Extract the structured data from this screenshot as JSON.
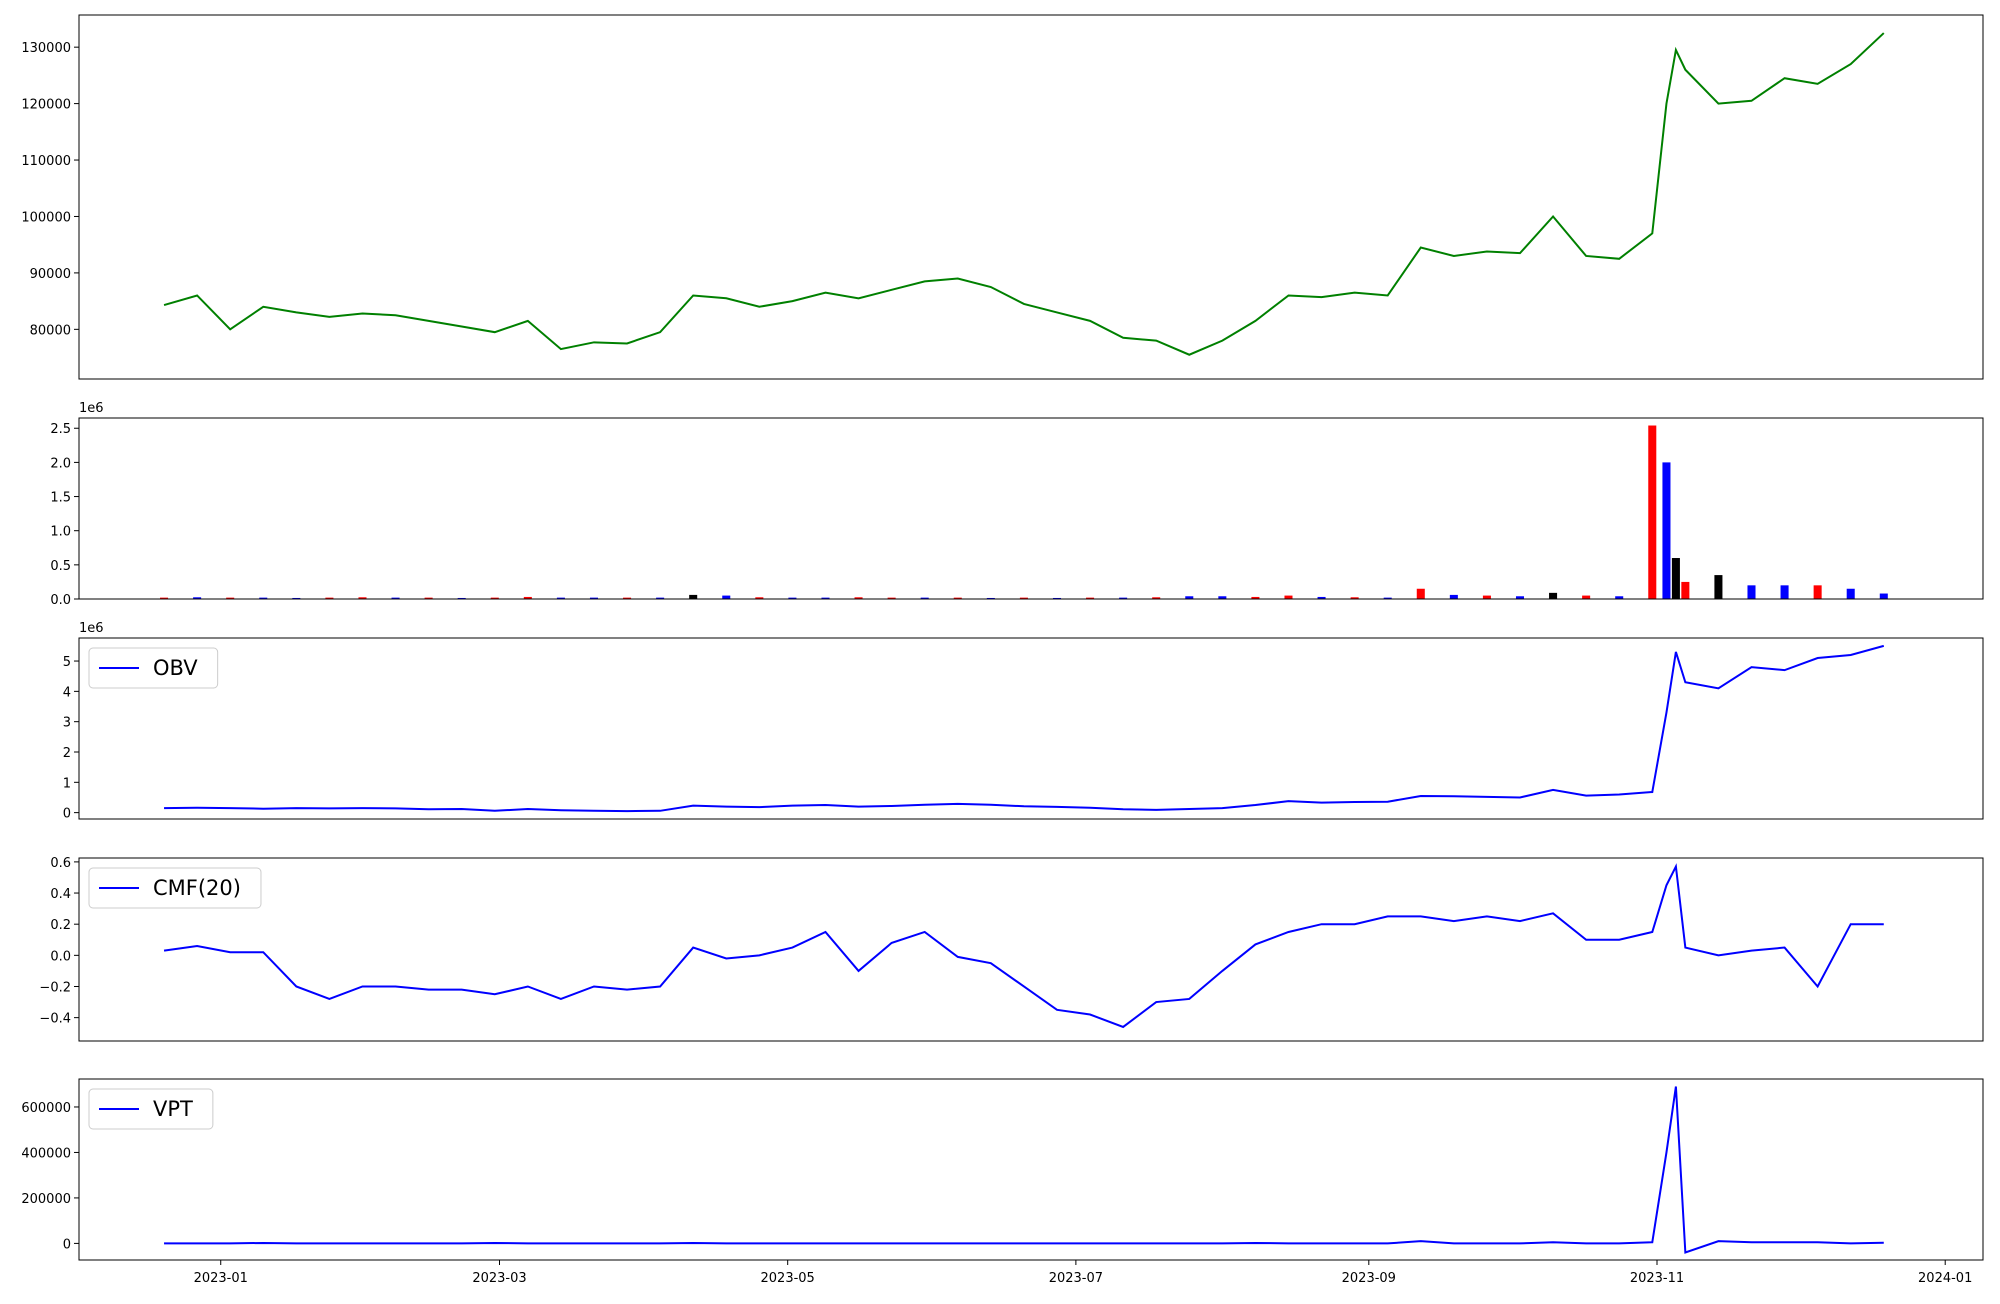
{
  "chart_data": [
    {
      "type": "line",
      "color": "#008000",
      "x": [
        -12,
        -5,
        2,
        9,
        16,
        23,
        30,
        37,
        44,
        51,
        58,
        65,
        72,
        79,
        86,
        93,
        100,
        107,
        114,
        121,
        128,
        135,
        142,
        149,
        156,
        163,
        170,
        177,
        184,
        191,
        198,
        205,
        212,
        219,
        226,
        233,
        240,
        247,
        254,
        261,
        268,
        275,
        282,
        289,
        296,
        303,
        306,
        308,
        310,
        317,
        324,
        331,
        338,
        345,
        352
      ],
      "values": [
        84300,
        86000,
        80000,
        84000,
        83000,
        82200,
        82800,
        82500,
        81500,
        80500,
        79500,
        81500,
        76500,
        77700,
        77500,
        79500,
        86000,
        85500,
        84000,
        85000,
        86500,
        85500,
        87000,
        88500,
        89000,
        87500,
        84500,
        83000,
        81500,
        78500,
        78000,
        75500,
        78000,
        81500,
        86000,
        85700,
        86500,
        86000,
        94500,
        93000,
        93800,
        93500,
        100000,
        93000,
        92500,
        97000,
        120000,
        129500,
        126000,
        120000,
        120500,
        124500,
        123500,
        127000,
        132500
      ],
      "xlim": [
        -30,
        373
      ],
      "ylim": [
        71200,
        135700
      ],
      "yticks": [
        80000,
        90000,
        100000,
        110000,
        120000,
        130000
      ]
    },
    {
      "type": "bar",
      "offset_label": "1e6",
      "x": [
        -12,
        -5,
        2,
        9,
        16,
        23,
        30,
        37,
        44,
        51,
        58,
        65,
        72,
        79,
        86,
        93,
        100,
        107,
        114,
        121,
        128,
        135,
        142,
        149,
        156,
        163,
        170,
        177,
        184,
        191,
        198,
        205,
        212,
        219,
        226,
        233,
        240,
        247,
        254,
        261,
        268,
        275,
        282,
        289,
        296,
        303,
        306,
        308,
        310,
        317,
        324,
        331,
        338,
        345,
        352
      ],
      "values": [
        20000,
        25000,
        20000,
        20000,
        15000,
        20000,
        25000,
        20000,
        20000,
        15000,
        20000,
        30000,
        20000,
        20000,
        20000,
        20000,
        60000,
        50000,
        25000,
        20000,
        20000,
        25000,
        20000,
        20000,
        20000,
        15000,
        20000,
        15000,
        20000,
        20000,
        25000,
        40000,
        40000,
        30000,
        50000,
        30000,
        25000,
        20000,
        150000,
        60000,
        50000,
        40000,
        90000,
        50000,
        40000,
        2540000,
        2000000,
        600000,
        250000,
        350000,
        200000,
        200000,
        200000,
        150000,
        80000
      ],
      "colors": [
        "red",
        "blue",
        "red",
        "blue",
        "blue",
        "red",
        "red",
        "blue",
        "red",
        "blue",
        "red",
        "red",
        "blue",
        "blue",
        "red",
        "blue",
        "black",
        "blue",
        "red",
        "blue",
        "blue",
        "red",
        "red",
        "blue",
        "red",
        "blue",
        "red",
        "blue",
        "red",
        "blue",
        "red",
        "blue",
        "blue",
        "red",
        "red",
        "blue",
        "red",
        "blue",
        "red",
        "blue",
        "red",
        "blue",
        "black",
        "red",
        "blue",
        "red",
        "blue",
        "black",
        "red",
        "black",
        "blue",
        "blue",
        "red",
        "blue",
        "blue"
      ],
      "xlim": [
        -30,
        373
      ],
      "ylim": [
        0,
        2650000
      ],
      "yticks": [
        {
          "value": 0,
          "label": "0.0"
        },
        {
          "value": 500000,
          "label": "0.5"
        },
        {
          "value": 1000000,
          "label": "1.0"
        },
        {
          "value": 1500000,
          "label": "1.5"
        },
        {
          "value": 2000000,
          "label": "2.0"
        },
        {
          "value": 2500000,
          "label": "2.5"
        }
      ]
    },
    {
      "type": "line",
      "offset_label": "1e6",
      "legend": "upper left",
      "x": [
        -12,
        -5,
        2,
        9,
        16,
        23,
        30,
        37,
        44,
        51,
        58,
        65,
        72,
        79,
        86,
        93,
        100,
        107,
        114,
        121,
        128,
        135,
        142,
        149,
        156,
        163,
        170,
        177,
        184,
        191,
        198,
        205,
        212,
        219,
        226,
        233,
        240,
        247,
        254,
        261,
        268,
        275,
        282,
        289,
        296,
        303,
        306,
        308,
        310,
        317,
        324,
        331,
        338,
        345,
        352
      ],
      "series": [
        {
          "name": "OBV",
          "color": "#0000ff",
          "values": [
            150000,
            160000,
            150000,
            130000,
            150000,
            140000,
            150000,
            140000,
            110000,
            120000,
            60000,
            120000,
            80000,
            60000,
            50000,
            60000,
            230000,
            200000,
            180000,
            230000,
            250000,
            200000,
            220000,
            260000,
            290000,
            260000,
            210000,
            190000,
            160000,
            110000,
            90000,
            120000,
            150000,
            250000,
            380000,
            330000,
            350000,
            360000,
            550000,
            540000,
            520000,
            500000,
            750000,
            560000,
            600000,
            680000,
            3300000,
            5300000,
            4300000,
            4100000,
            4800000,
            4700000,
            5100000,
            5200000,
            5500000
          ]
        }
      ],
      "xlim": [
        -30,
        373
      ],
      "ylim": [
        -210000,
        5760000
      ],
      "yticks": [
        {
          "value": 0,
          "label": "0"
        },
        {
          "value": 1000000,
          "label": "1"
        },
        {
          "value": 2000000,
          "label": "2"
        },
        {
          "value": 3000000,
          "label": "3"
        },
        {
          "value": 4000000,
          "label": "4"
        },
        {
          "value": 5000000,
          "label": "5"
        }
      ]
    },
    {
      "type": "line",
      "legend": "upper left",
      "x": [
        -12,
        -5,
        2,
        9,
        16,
        23,
        30,
        37,
        44,
        51,
        58,
        65,
        72,
        79,
        86,
        93,
        100,
        107,
        114,
        121,
        128,
        135,
        142,
        149,
        156,
        163,
        170,
        177,
        184,
        191,
        198,
        205,
        212,
        219,
        226,
        233,
        240,
        247,
        254,
        261,
        268,
        275,
        282,
        289,
        296,
        303,
        306,
        308,
        310,
        317,
        324,
        331,
        338,
        345,
        352
      ],
      "series": [
        {
          "name": "CMF(20)",
          "color": "#0000ff",
          "values": [
            0.03,
            0.06,
            0.02,
            0.02,
            -0.2,
            -0.28,
            -0.2,
            -0.2,
            -0.22,
            -0.22,
            -0.25,
            -0.2,
            -0.28,
            -0.2,
            -0.22,
            -0.2,
            0.05,
            -0.02,
            0.0,
            0.05,
            0.15,
            -0.1,
            0.08,
            0.15,
            -0.01,
            -0.05,
            -0.2,
            -0.35,
            -0.38,
            -0.46,
            -0.3,
            -0.28,
            -0.1,
            0.07,
            0.15,
            0.2,
            0.2,
            0.25,
            0.25,
            0.22,
            0.25,
            0.22,
            0.27,
            0.1,
            0.1,
            0.15,
            0.45,
            0.57,
            0.05,
            0.0,
            0.03,
            0.05,
            -0.2,
            0.2,
            0.2
          ]
        }
      ],
      "xlim": [
        -30,
        373
      ],
      "ylim": [
        -0.55,
        0.625
      ],
      "yticks": [
        {
          "value": -0.4,
          "label": "−0.4"
        },
        {
          "value": -0.2,
          "label": "−0.2"
        },
        {
          "value": 0,
          "label": "0.0"
        },
        0.2,
        0.4,
        0.6
      ]
    },
    {
      "type": "line",
      "legend": "upper left",
      "x": [
        -12,
        -5,
        2,
        9,
        16,
        23,
        30,
        37,
        44,
        51,
        58,
        65,
        72,
        79,
        86,
        93,
        100,
        107,
        114,
        121,
        128,
        135,
        142,
        149,
        156,
        163,
        170,
        177,
        184,
        191,
        198,
        205,
        212,
        219,
        226,
        233,
        240,
        247,
        254,
        261,
        268,
        275,
        282,
        289,
        296,
        303,
        306,
        308,
        310,
        317,
        324,
        331,
        338,
        345,
        352
      ],
      "series": [
        {
          "name": "VPT",
          "color": "#0000ff",
          "values": [
            0,
            0,
            0,
            2000,
            0,
            0,
            0,
            0,
            0,
            0,
            2000,
            0,
            0,
            0,
            0,
            0,
            2000,
            0,
            0,
            0,
            0,
            0,
            0,
            0,
            0,
            0,
            0,
            0,
            0,
            0,
            0,
            0,
            0,
            2000,
            0,
            0,
            0,
            0,
            10000,
            0,
            0,
            0,
            5000,
            0,
            0,
            5000,
            400000,
            690000,
            -40000,
            10000,
            5000,
            5000,
            5000,
            0,
            3000
          ]
        }
      ],
      "xlim": [
        -30,
        373
      ],
      "ylim": [
        -73000,
        723000
      ],
      "yticks": [
        0,
        200000,
        400000,
        600000
      ],
      "xticks": [
        {
          "value": 0,
          "label": "2023-01"
        },
        {
          "value": 59,
          "label": "2023-03"
        },
        {
          "value": 120,
          "label": "2023-05"
        },
        {
          "value": 181,
          "label": "2023-07"
        },
        {
          "value": 243,
          "label": "2023-09"
        },
        {
          "value": 304,
          "label": "2023-11"
        },
        {
          "value": 365,
          "label": "2024-01"
        }
      ]
    }
  ]
}
